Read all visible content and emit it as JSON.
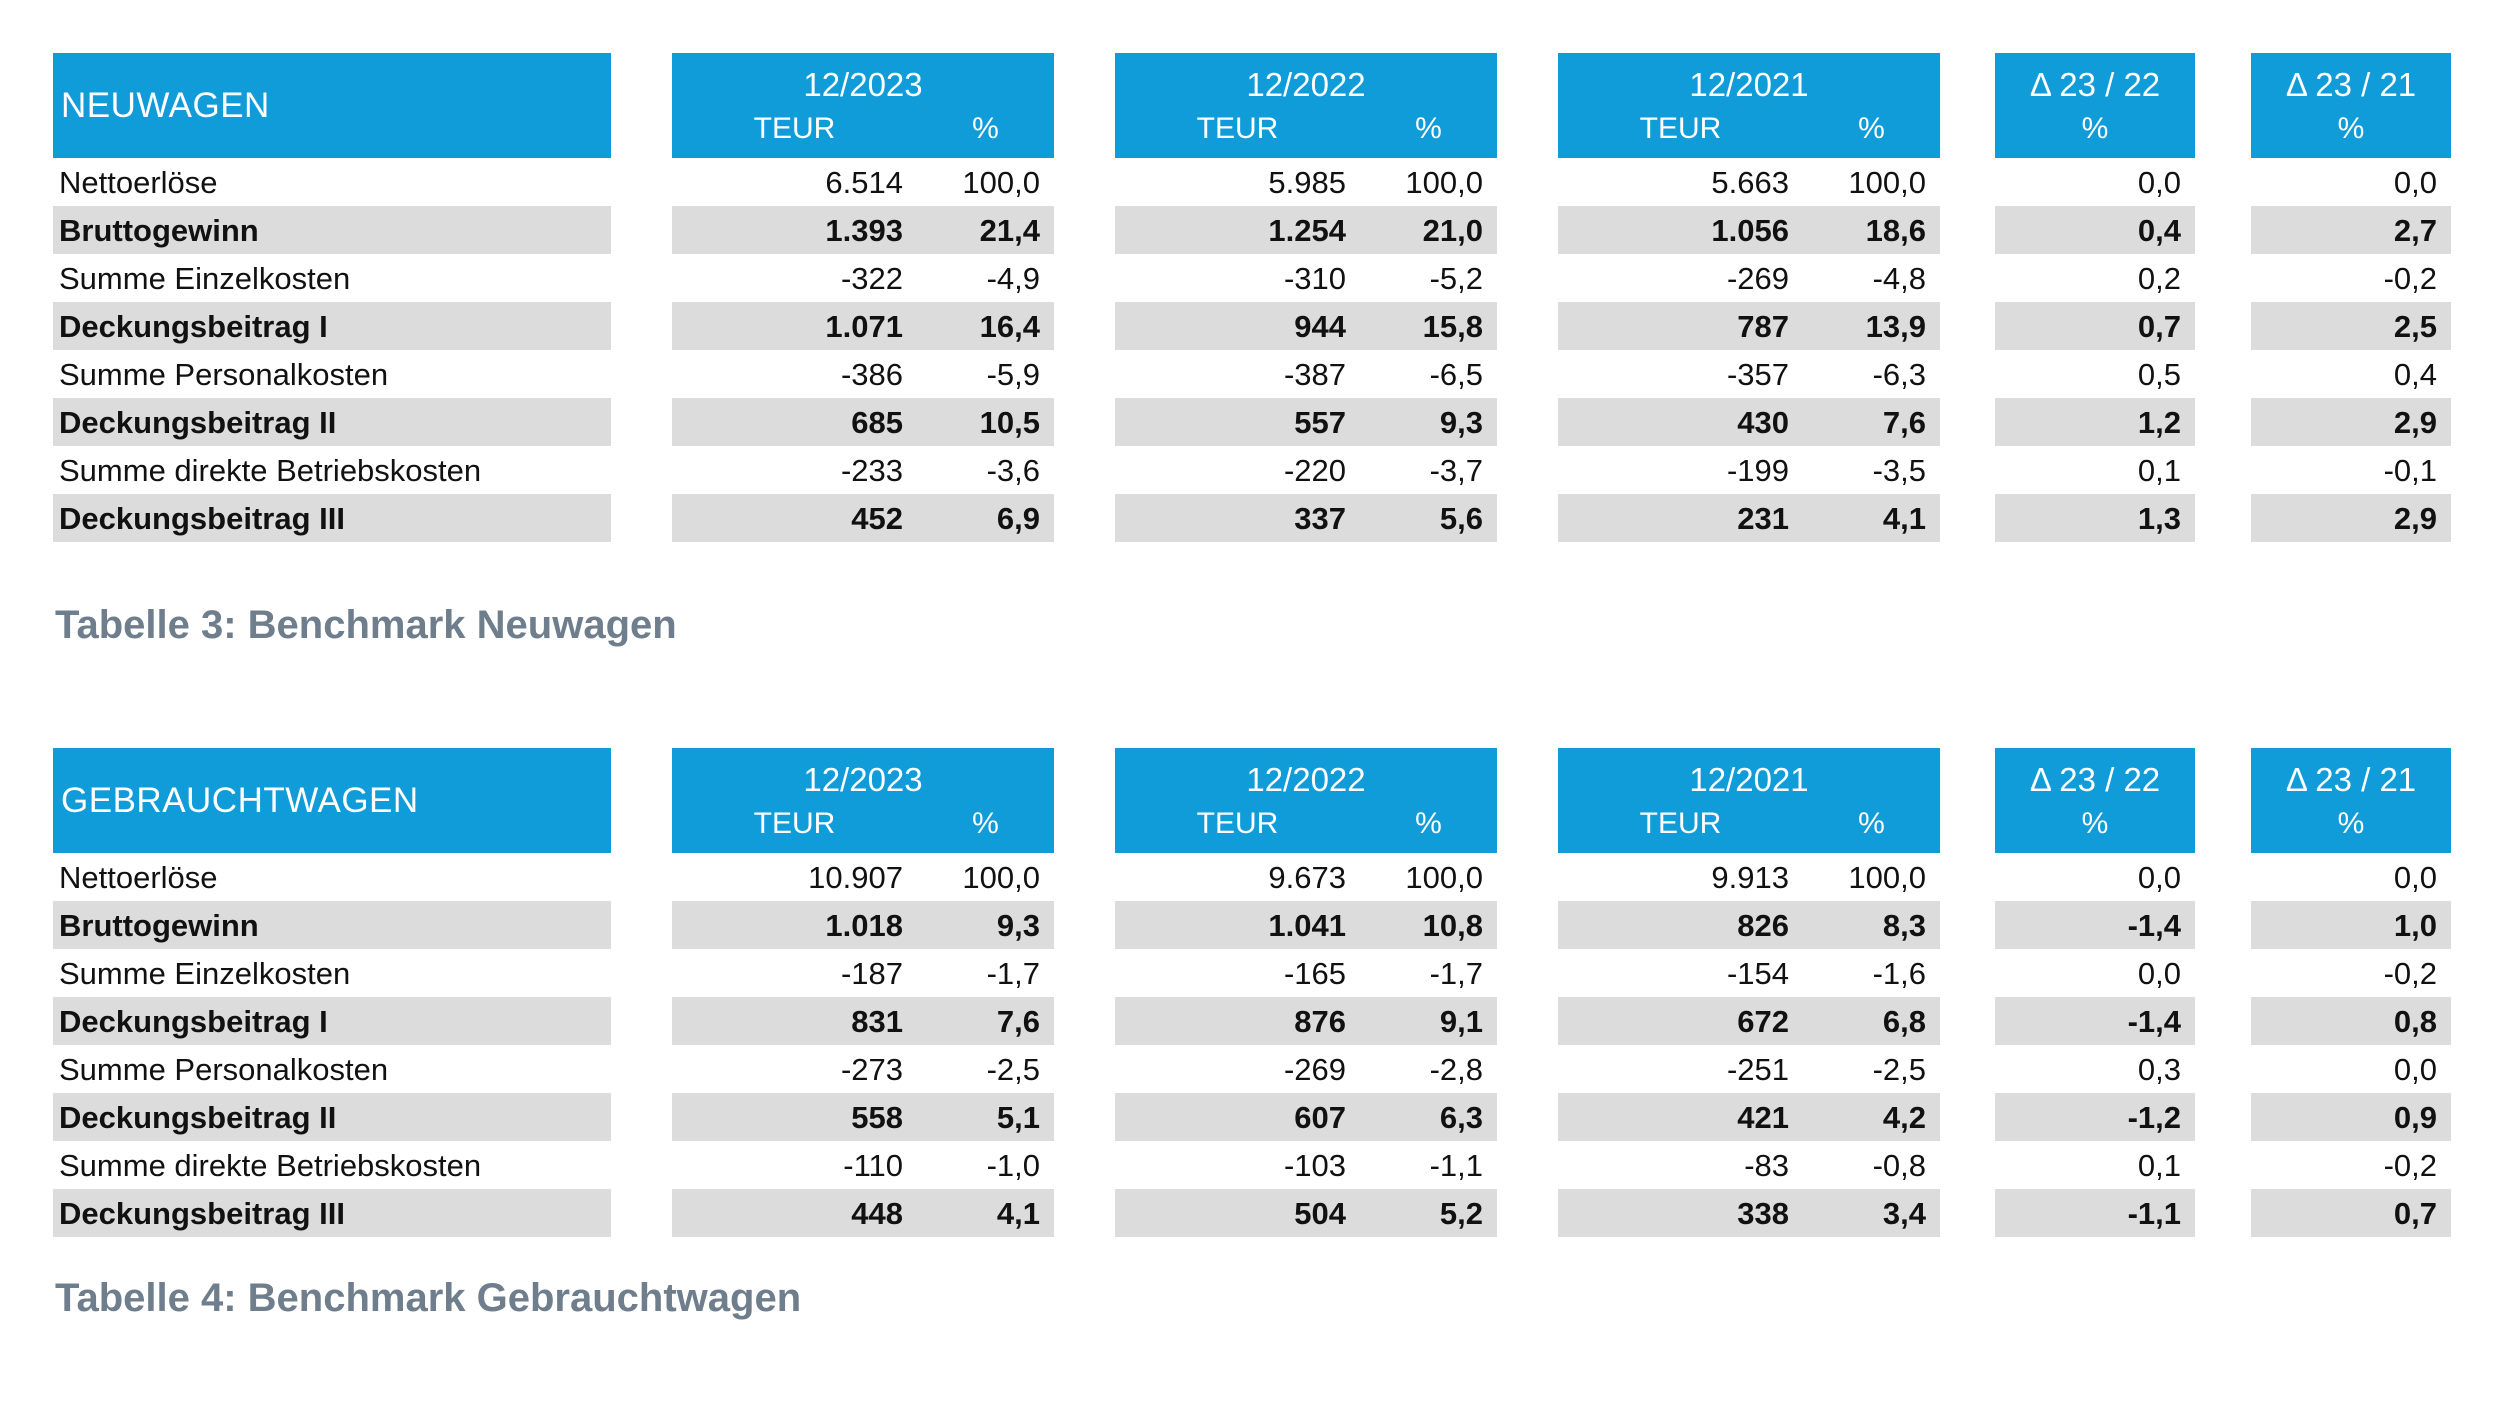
{
  "colors": {
    "accent_blue": "#109cd9",
    "stripe_gray": "#dcdcdc",
    "caption_gray": "#6f7e8c"
  },
  "tables": [
    {
      "title": "NEUWAGEN",
      "caption": "Tabelle 3: Benchmark Neuwagen",
      "periods": [
        {
          "label": "12/2023",
          "unit": "TEUR",
          "pct": "%"
        },
        {
          "label": "12/2022",
          "unit": "TEUR",
          "pct": "%"
        },
        {
          "label": "12/2021",
          "unit": "TEUR",
          "pct": "%"
        }
      ],
      "deltas": [
        {
          "label": "Δ 23 / 22",
          "pct": "%"
        },
        {
          "label": "Δ 23 / 21",
          "pct": "%"
        }
      ],
      "rows": [
        {
          "label": "Nettoerlöse",
          "bold": false,
          "values": [
            "6.514",
            "100,0",
            "5.985",
            "100,0",
            "5.663",
            "100,0",
            "0,0",
            "0,0"
          ]
        },
        {
          "label": "Bruttogewinn",
          "bold": true,
          "values": [
            "1.393",
            "21,4",
            "1.254",
            "21,0",
            "1.056",
            "18,6",
            "0,4",
            "2,7"
          ]
        },
        {
          "label": "Summe Einzelkosten",
          "bold": false,
          "values": [
            "-322",
            "-4,9",
            "-310",
            "-5,2",
            "-269",
            "-4,8",
            "0,2",
            "-0,2"
          ]
        },
        {
          "label": "Deckungsbeitrag I",
          "bold": true,
          "values": [
            "1.071",
            "16,4",
            "944",
            "15,8",
            "787",
            "13,9",
            "0,7",
            "2,5"
          ]
        },
        {
          "label": "Summe Personalkosten",
          "bold": false,
          "values": [
            "-386",
            "-5,9",
            "-387",
            "-6,5",
            "-357",
            "-6,3",
            "0,5",
            "0,4"
          ]
        },
        {
          "label": "Deckungsbeitrag II",
          "bold": true,
          "values": [
            "685",
            "10,5",
            "557",
            "9,3",
            "430",
            "7,6",
            "1,2",
            "2,9"
          ]
        },
        {
          "label": "Summe direkte Betriebskosten",
          "bold": false,
          "values": [
            "-233",
            "-3,6",
            "-220",
            "-3,7",
            "-199",
            "-3,5",
            "0,1",
            "-0,1"
          ]
        },
        {
          "label": "Deckungsbeitrag III",
          "bold": true,
          "values": [
            "452",
            "6,9",
            "337",
            "5,6",
            "231",
            "4,1",
            "1,3",
            "2,9"
          ]
        }
      ]
    },
    {
      "title": "GEBRAUCHTWAGEN",
      "caption": "Tabelle 4: Benchmark Gebrauchtwagen",
      "periods": [
        {
          "label": "12/2023",
          "unit": "TEUR",
          "pct": "%"
        },
        {
          "label": "12/2022",
          "unit": "TEUR",
          "pct": "%"
        },
        {
          "label": "12/2021",
          "unit": "TEUR",
          "pct": "%"
        }
      ],
      "deltas": [
        {
          "label": "Δ 23 / 22",
          "pct": "%"
        },
        {
          "label": "Δ 23 / 21",
          "pct": "%"
        }
      ],
      "rows": [
        {
          "label": "Nettoerlöse",
          "bold": false,
          "values": [
            "10.907",
            "100,0",
            "9.673",
            "100,0",
            "9.913",
            "100,0",
            "0,0",
            "0,0"
          ]
        },
        {
          "label": "Bruttogewinn",
          "bold": true,
          "values": [
            "1.018",
            "9,3",
            "1.041",
            "10,8",
            "826",
            "8,3",
            "-1,4",
            "1,0"
          ]
        },
        {
          "label": "Summe Einzelkosten",
          "bold": false,
          "values": [
            "-187",
            "-1,7",
            "-165",
            "-1,7",
            "-154",
            "-1,6",
            "0,0",
            "-0,2"
          ]
        },
        {
          "label": "Deckungsbeitrag I",
          "bold": true,
          "values": [
            "831",
            "7,6",
            "876",
            "9,1",
            "672",
            "6,8",
            "-1,4",
            "0,8"
          ]
        },
        {
          "label": "Summe Personalkosten",
          "bold": false,
          "values": [
            "-273",
            "-2,5",
            "-269",
            "-2,8",
            "-251",
            "-2,5",
            "0,3",
            "0,0"
          ]
        },
        {
          "label": "Deckungsbeitrag II",
          "bold": true,
          "values": [
            "558",
            "5,1",
            "607",
            "6,3",
            "421",
            "4,2",
            "-1,2",
            "0,9"
          ]
        },
        {
          "label": "Summe direkte Betriebskosten",
          "bold": false,
          "values": [
            "-110",
            "-1,0",
            "-103",
            "-1,1",
            "-83",
            "-0,8",
            "0,1",
            "-0,2"
          ]
        },
        {
          "label": "Deckungsbeitrag III",
          "bold": true,
          "values": [
            "448",
            "4,1",
            "504",
            "5,2",
            "338",
            "3,4",
            "-1,1",
            "0,7"
          ]
        }
      ]
    }
  ]
}
